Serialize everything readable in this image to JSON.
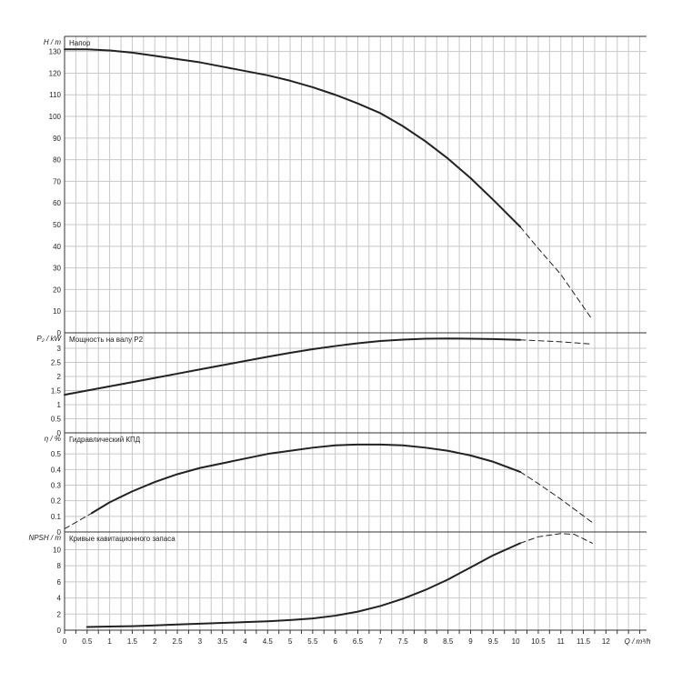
{
  "chart_data": [
    {
      "type": "line",
      "ylabel": "H / m",
      "title": "Напор",
      "ylim": [
        0,
        137
      ],
      "yticks": [
        0,
        10,
        20,
        30,
        40,
        50,
        60,
        70,
        80,
        90,
        100,
        110,
        120,
        130
      ],
      "series": [
        {
          "style": "solid",
          "x": [
            0,
            0.5,
            1,
            1.5,
            2,
            2.5,
            3,
            3.5,
            4,
            4.5,
            5,
            5.5,
            6,
            6.5,
            7,
            7.5,
            8,
            8.5,
            9,
            9.5,
            10.1
          ],
          "y": [
            131,
            131,
            130.5,
            129.5,
            128,
            126.5,
            125,
            123,
            121,
            119,
            116.5,
            113.5,
            110,
            106,
            101.5,
            95.5,
            88.5,
            80.5,
            71.5,
            61.5,
            49
          ]
        },
        {
          "style": "dashed",
          "x": [
            10.1,
            10.5,
            11,
            11.7
          ],
          "y": [
            49,
            39,
            27,
            6
          ]
        }
      ]
    },
    {
      "type": "line",
      "ylabel": "P₂ / kW",
      "title": "Мощность на валу P2",
      "ylim": [
        0,
        3.55
      ],
      "yticks": [
        0,
        0.5,
        1,
        1.5,
        2,
        2.5,
        3
      ],
      "ytick_labels": [
        "0",
        "0.5",
        "1",
        "1.5",
        "2",
        "2.5",
        "3"
      ],
      "series": [
        {
          "style": "solid",
          "x": [
            0,
            0.5,
            1,
            1.5,
            2,
            2.5,
            3,
            3.5,
            4,
            4.5,
            5,
            5.5,
            6,
            6.5,
            7,
            7.5,
            8,
            8.5,
            9,
            9.5,
            10.1
          ],
          "y": [
            1.35,
            1.5,
            1.65,
            1.8,
            1.95,
            2.1,
            2.25,
            2.4,
            2.55,
            2.7,
            2.84,
            2.97,
            3.08,
            3.18,
            3.26,
            3.31,
            3.34,
            3.35,
            3.34,
            3.33,
            3.3
          ]
        },
        {
          "style": "dashed",
          "x": [
            10.1,
            10.5,
            11,
            11.7
          ],
          "y": [
            3.3,
            3.27,
            3.23,
            3.15
          ]
        }
      ]
    },
    {
      "type": "line",
      "ylabel": "η / %",
      "title": "Гидравлический КПД",
      "ylim": [
        0,
        0.635
      ],
      "yticks": [
        0,
        0.1,
        0.2,
        0.3,
        0.4,
        0.5
      ],
      "ytick_labels": [
        "0",
        "0.1",
        "0.2",
        "0.3",
        "0.4",
        "0.5"
      ],
      "series": [
        {
          "style": "dashed",
          "x": [
            0,
            0.3,
            0.6
          ],
          "y": [
            0.02,
            0.07,
            0.12
          ]
        },
        {
          "style": "solid",
          "x": [
            0.6,
            1,
            1.5,
            2,
            2.5,
            3,
            3.5,
            4,
            4.5,
            5,
            5.5,
            6,
            6.5,
            7,
            7.5,
            8,
            8.5,
            9,
            9.5,
            10.1
          ],
          "y": [
            0.12,
            0.19,
            0.26,
            0.32,
            0.37,
            0.41,
            0.44,
            0.47,
            0.5,
            0.52,
            0.54,
            0.555,
            0.56,
            0.56,
            0.555,
            0.54,
            0.52,
            0.49,
            0.45,
            0.385
          ]
        },
        {
          "style": "dashed",
          "x": [
            10.1,
            10.5,
            11,
            11.7
          ],
          "y": [
            0.385,
            0.31,
            0.21,
            0.06
          ]
        }
      ]
    },
    {
      "type": "line",
      "ylabel": "NPSH / m",
      "title": "Кривые кавитационного запаса",
      "ylim": [
        0,
        12.2
      ],
      "yticks": [
        0,
        2,
        4,
        6,
        8,
        10
      ],
      "ytick_labels": [
        "0",
        "2",
        "4",
        "6",
        "8",
        "10"
      ],
      "series": [
        {
          "style": "solid",
          "x": [
            0.5,
            1,
            1.5,
            2,
            2.5,
            3,
            3.5,
            4,
            4.5,
            5,
            5.5,
            6,
            6.5,
            7,
            7.5,
            8,
            8.5,
            9,
            9.5,
            10.1
          ],
          "y": [
            0.4,
            0.45,
            0.5,
            0.6,
            0.7,
            0.8,
            0.9,
            1.0,
            1.1,
            1.25,
            1.45,
            1.8,
            2.3,
            3.0,
            3.9,
            5.0,
            6.3,
            7.8,
            9.3,
            10.8
          ]
        },
        {
          "style": "dashed",
          "x": [
            10.1,
            10.5,
            11,
            11.3,
            11.7
          ],
          "y": [
            10.8,
            11.6,
            12.0,
            11.9,
            10.8
          ]
        }
      ]
    }
  ],
  "x_axis": {
    "label": "Q / m³/h",
    "xlim": [
      0,
      12.9
    ],
    "ticks": [
      0,
      0.5,
      1,
      1.5,
      2,
      2.5,
      3,
      3.5,
      4,
      4.5,
      5,
      5.5,
      6,
      6.5,
      7,
      7.5,
      8,
      8.5,
      9,
      9.5,
      10,
      10.5,
      11,
      11.5,
      12
    ],
    "tick_labels": [
      "0",
      "0.5",
      "1",
      "1.5",
      "2",
      "2.5",
      "3",
      "3.5",
      "4",
      "4.5",
      "5",
      "5.5",
      "6",
      "6.5",
      "7",
      "7.5",
      "8",
      "8.5",
      "9",
      "9.5",
      "10",
      "10.5",
      "11",
      "11.5",
      "12"
    ]
  }
}
